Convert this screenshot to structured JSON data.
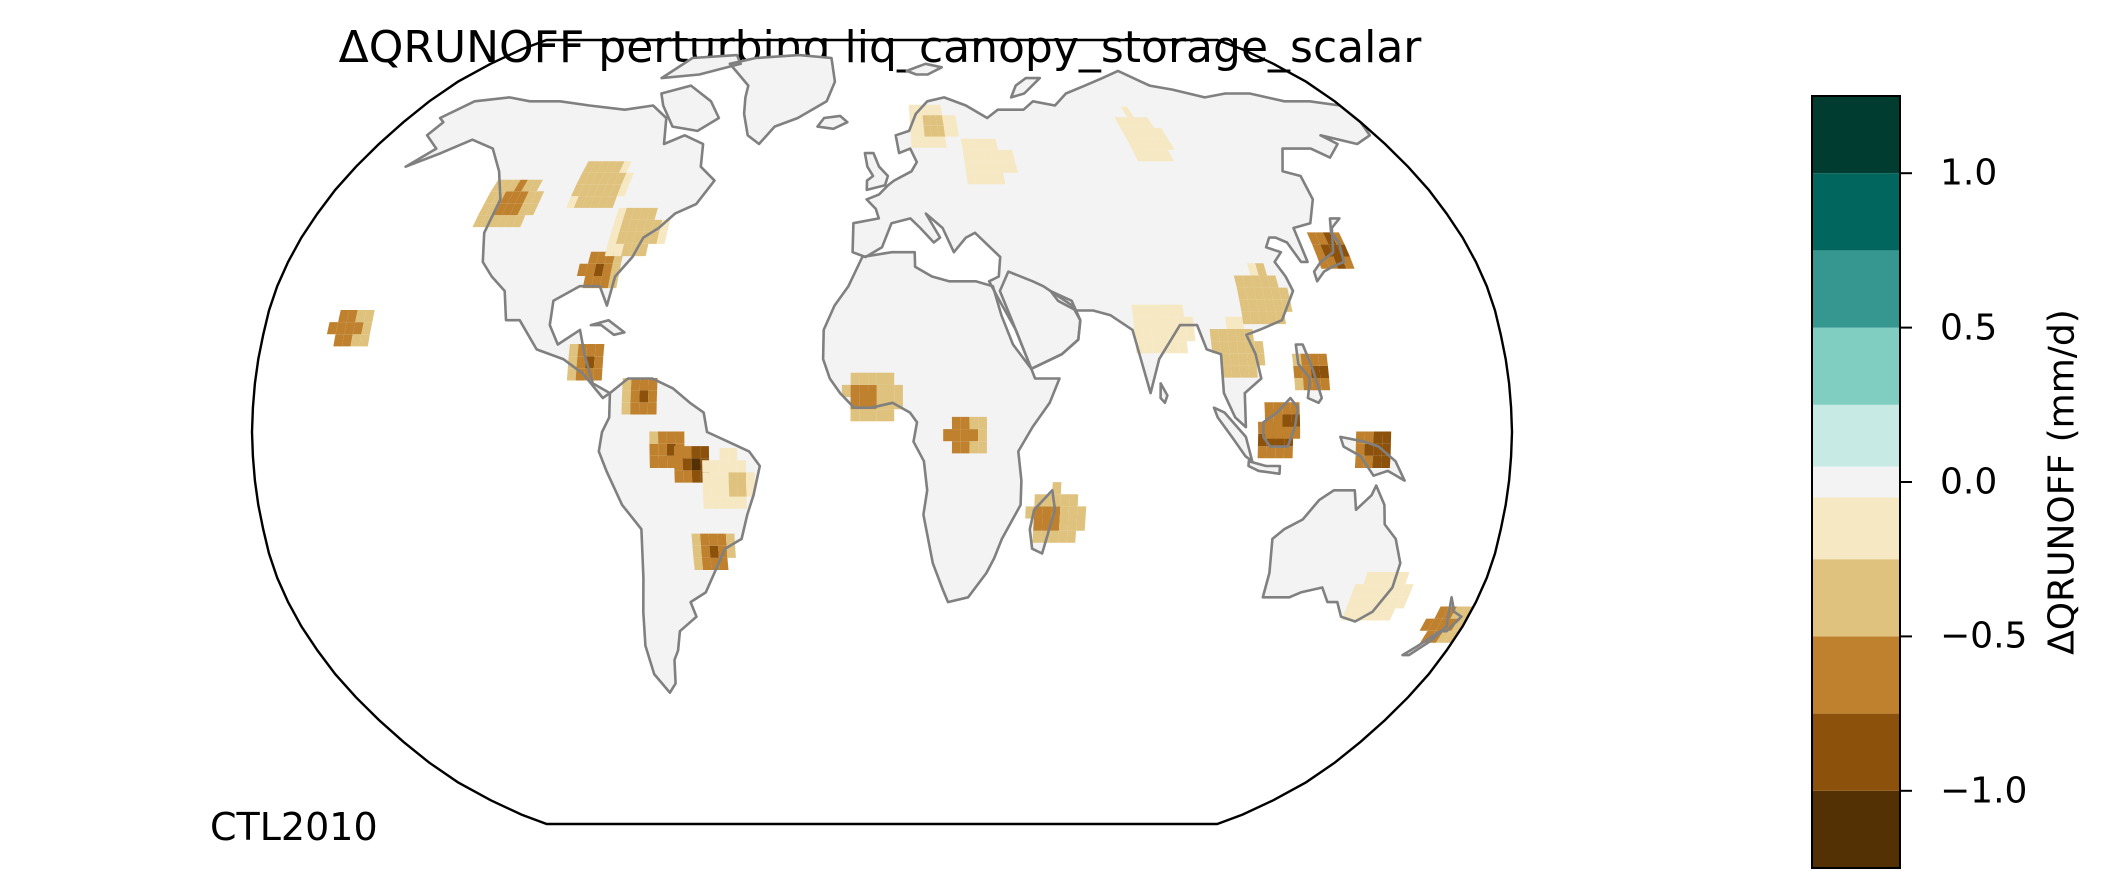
{
  "title": "ΔQRUNOFF perturbing liq_canopy_storage_scalar",
  "run_label": "CTL2010",
  "colorbar": {
    "label": "ΔQRUNOFF (mm/d)",
    "ticks": [
      {
        "value": 1.0,
        "text": "1.0"
      },
      {
        "value": 0.5,
        "text": "0.5"
      },
      {
        "value": 0.0,
        "text": "0.0"
      },
      {
        "value": -0.5,
        "text": "−0.5"
      },
      {
        "value": -1.0,
        "text": "−1.0"
      }
    ],
    "range": [
      -1.25,
      1.25
    ],
    "bins": [
      {
        "from": -1.25,
        "to": -1.0,
        "color": "#543005"
      },
      {
        "from": -1.0,
        "to": -0.75,
        "color": "#8c510a"
      },
      {
        "from": -0.75,
        "to": -0.5,
        "color": "#bf812d"
      },
      {
        "from": -0.5,
        "to": -0.25,
        "color": "#dfc27d"
      },
      {
        "from": -0.25,
        "to": -0.05,
        "color": "#f6e8c3"
      },
      {
        "from": -0.05,
        "to": 0.05,
        "color": "#f3f3f3"
      },
      {
        "from": 0.05,
        "to": 0.25,
        "color": "#c7eae5"
      },
      {
        "from": 0.25,
        "to": 0.5,
        "color": "#80cdc1"
      },
      {
        "from": 0.5,
        "to": 0.75,
        "color": "#35978f"
      },
      {
        "from": 0.75,
        "to": 1.0,
        "color": "#01665e"
      },
      {
        "from": 1.0,
        "to": 1.25,
        "color": "#003c30"
      }
    ]
  },
  "map": {
    "projection": "Robinson",
    "coastline_color": "#808080",
    "border_color": "#c8c8c8",
    "land_color": "#f3f3f3",
    "regions": [
      {
        "name": "Amazon",
        "lon": -62,
        "lat": -5,
        "value": -0.9
      },
      {
        "name": "Central Amazon",
        "lon": -55,
        "lat": -8,
        "value": -1.1
      },
      {
        "name": "Colombia-Venezuela",
        "lon": -70,
        "lat": 6,
        "value": -0.8
      },
      {
        "name": "Central America",
        "lon": -86,
        "lat": 13,
        "value": -0.8
      },
      {
        "name": "Eastern Brazil",
        "lon": -45,
        "lat": -12,
        "value": -0.3
      },
      {
        "name": "Southern Brazil",
        "lon": -51,
        "lat": -26,
        "value": -0.7
      },
      {
        "name": "Southeastern USA",
        "lon": -87,
        "lat": 32,
        "value": -0.7
      },
      {
        "name": "Eastern USA",
        "lon": -78,
        "lat": 40,
        "value": -0.4
      },
      {
        "name": "Pacific Northwest",
        "lon": -122,
        "lat": 46,
        "value": -0.6
      },
      {
        "name": "Southern Canada",
        "lon": -95,
        "lat": 50,
        "value": -0.45
      },
      {
        "name": "Congo Basin",
        "lon": 22,
        "lat": -2,
        "value": -0.8
      },
      {
        "name": "West Africa Coast",
        "lon": -5,
        "lat": 6,
        "value": -0.6
      },
      {
        "name": "Madagascar",
        "lon": 48,
        "lat": -19,
        "value": -0.6
      },
      {
        "name": "Indonesia",
        "lon": 112,
        "lat": -3,
        "value": -1.1
      },
      {
        "name": "Borneo",
        "lon": 114,
        "lat": 1,
        "value": -1.0
      },
      {
        "name": "New Guinea",
        "lon": 140,
        "lat": -5,
        "value": -1.1
      },
      {
        "name": "Philippines",
        "lon": 123,
        "lat": 11,
        "value": -0.9
      },
      {
        "name": "Southeast Asia",
        "lon": 102,
        "lat": 15,
        "value": -0.5
      },
      {
        "name": "Southern China",
        "lon": 112,
        "lat": 26,
        "value": -0.5
      },
      {
        "name": "Japan",
        "lon": 137,
        "lat": 36,
        "value": -0.9
      },
      {
        "name": "Siberia",
        "lon": 95,
        "lat": 60,
        "value": -0.2
      },
      {
        "name": "Scandinavia",
        "lon": 17,
        "lat": 63,
        "value": -0.3
      },
      {
        "name": "Eastern Europe",
        "lon": 35,
        "lat": 55,
        "value": -0.2
      },
      {
        "name": "India",
        "lon": 80,
        "lat": 20,
        "value": -0.2
      },
      {
        "name": "New Zealand",
        "lon": 172,
        "lat": -41,
        "value": -0.7
      },
      {
        "name": "Southeastern Australia",
        "lon": 148,
        "lat": -35,
        "value": -0.2
      },
      {
        "name": "Hawaii",
        "lon": -157,
        "lat": 20,
        "value": -0.8
      }
    ]
  }
}
